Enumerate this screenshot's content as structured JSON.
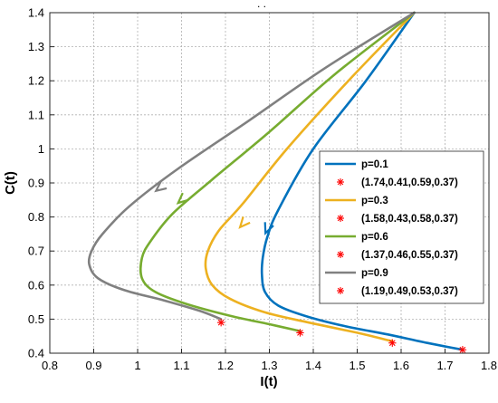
{
  "chart_data": {
    "type": "line",
    "title": ". .",
    "xlabel": "I(t)",
    "ylabel": "C(t)",
    "xlim": [
      0.8,
      1.8
    ],
    "ylim": [
      0.4,
      1.4
    ],
    "xticks": [
      "0.8",
      "0.9",
      "1",
      "1.1",
      "1.2",
      "1.3",
      "1.4",
      "1.5",
      "1.6",
      "1.7",
      "1.8"
    ],
    "yticks": [
      "0.4",
      "0.5",
      "0.6",
      "0.7",
      "0.8",
      "0.9",
      "1",
      "1.1",
      "1.2",
      "1.3",
      "1.4"
    ],
    "grid": true,
    "legend_position": "right",
    "start_point": [
      1.63,
      1.4
    ],
    "series": [
      {
        "name": "p=0.1",
        "color": "#0072BD",
        "x": [
          1.63,
          1.52,
          1.4,
          1.32,
          1.295,
          1.285,
          1.283,
          1.29,
          1.32,
          1.38,
          1.47,
          1.57,
          1.66,
          1.74
        ],
        "y": [
          1.4,
          1.2,
          1.0,
          0.82,
          0.74,
          0.68,
          0.63,
          0.58,
          0.54,
          0.51,
          0.48,
          0.455,
          0.43,
          0.41
        ],
        "arrow": [
          1.295,
          0.765
        ],
        "equilibrium_label": "(1.74,0.41,0.59,0.37)",
        "equilibrium": [
          1.74,
          0.41
        ]
      },
      {
        "name": "p=0.3",
        "color": "#EDB120",
        "x": [
          1.63,
          1.48,
          1.34,
          1.24,
          1.185,
          1.16,
          1.155,
          1.17,
          1.21,
          1.29,
          1.39,
          1.5,
          1.58
        ],
        "y": [
          1.4,
          1.2,
          1.0,
          0.84,
          0.76,
          0.7,
          0.65,
          0.6,
          0.56,
          0.52,
          0.49,
          0.46,
          0.435
        ],
        "arrow": [
          1.24,
          0.78
        ],
        "equilibrium_label": "(1.58,0.43,0.58,0.37)",
        "equilibrium": [
          1.58,
          0.43
        ]
      },
      {
        "name": "p=0.6",
        "color": "#77AC30",
        "x": [
          1.63,
          1.45,
          1.3,
          1.17,
          1.08,
          1.03,
          1.01,
          1.01,
          1.04,
          1.11,
          1.21,
          1.3,
          1.37
        ],
        "y": [
          1.4,
          1.22,
          1.05,
          0.91,
          0.81,
          0.73,
          0.68,
          0.62,
          0.58,
          0.545,
          0.51,
          0.485,
          0.465
        ],
        "arrow": [
          1.1,
          0.85
        ],
        "equilibrium_label": "(1.37,0.46,0.55,0.37)",
        "equilibrium": [
          1.37,
          0.46
        ]
      },
      {
        "name": "p=0.9",
        "color": "#808080",
        "x": [
          1.63,
          1.43,
          1.25,
          1.09,
          0.98,
          0.92,
          0.895,
          0.89,
          0.91,
          0.97,
          1.06,
          1.14,
          1.19
        ],
        "y": [
          1.4,
          1.24,
          1.08,
          0.94,
          0.83,
          0.75,
          0.7,
          0.66,
          0.62,
          0.585,
          0.555,
          0.525,
          0.5
        ],
        "arrow": [
          1.05,
          0.885
        ],
        "equilibrium_label": "(1.19,0.49,0.53,0.37)",
        "equilibrium": [
          1.19,
          0.49
        ]
      }
    ]
  }
}
